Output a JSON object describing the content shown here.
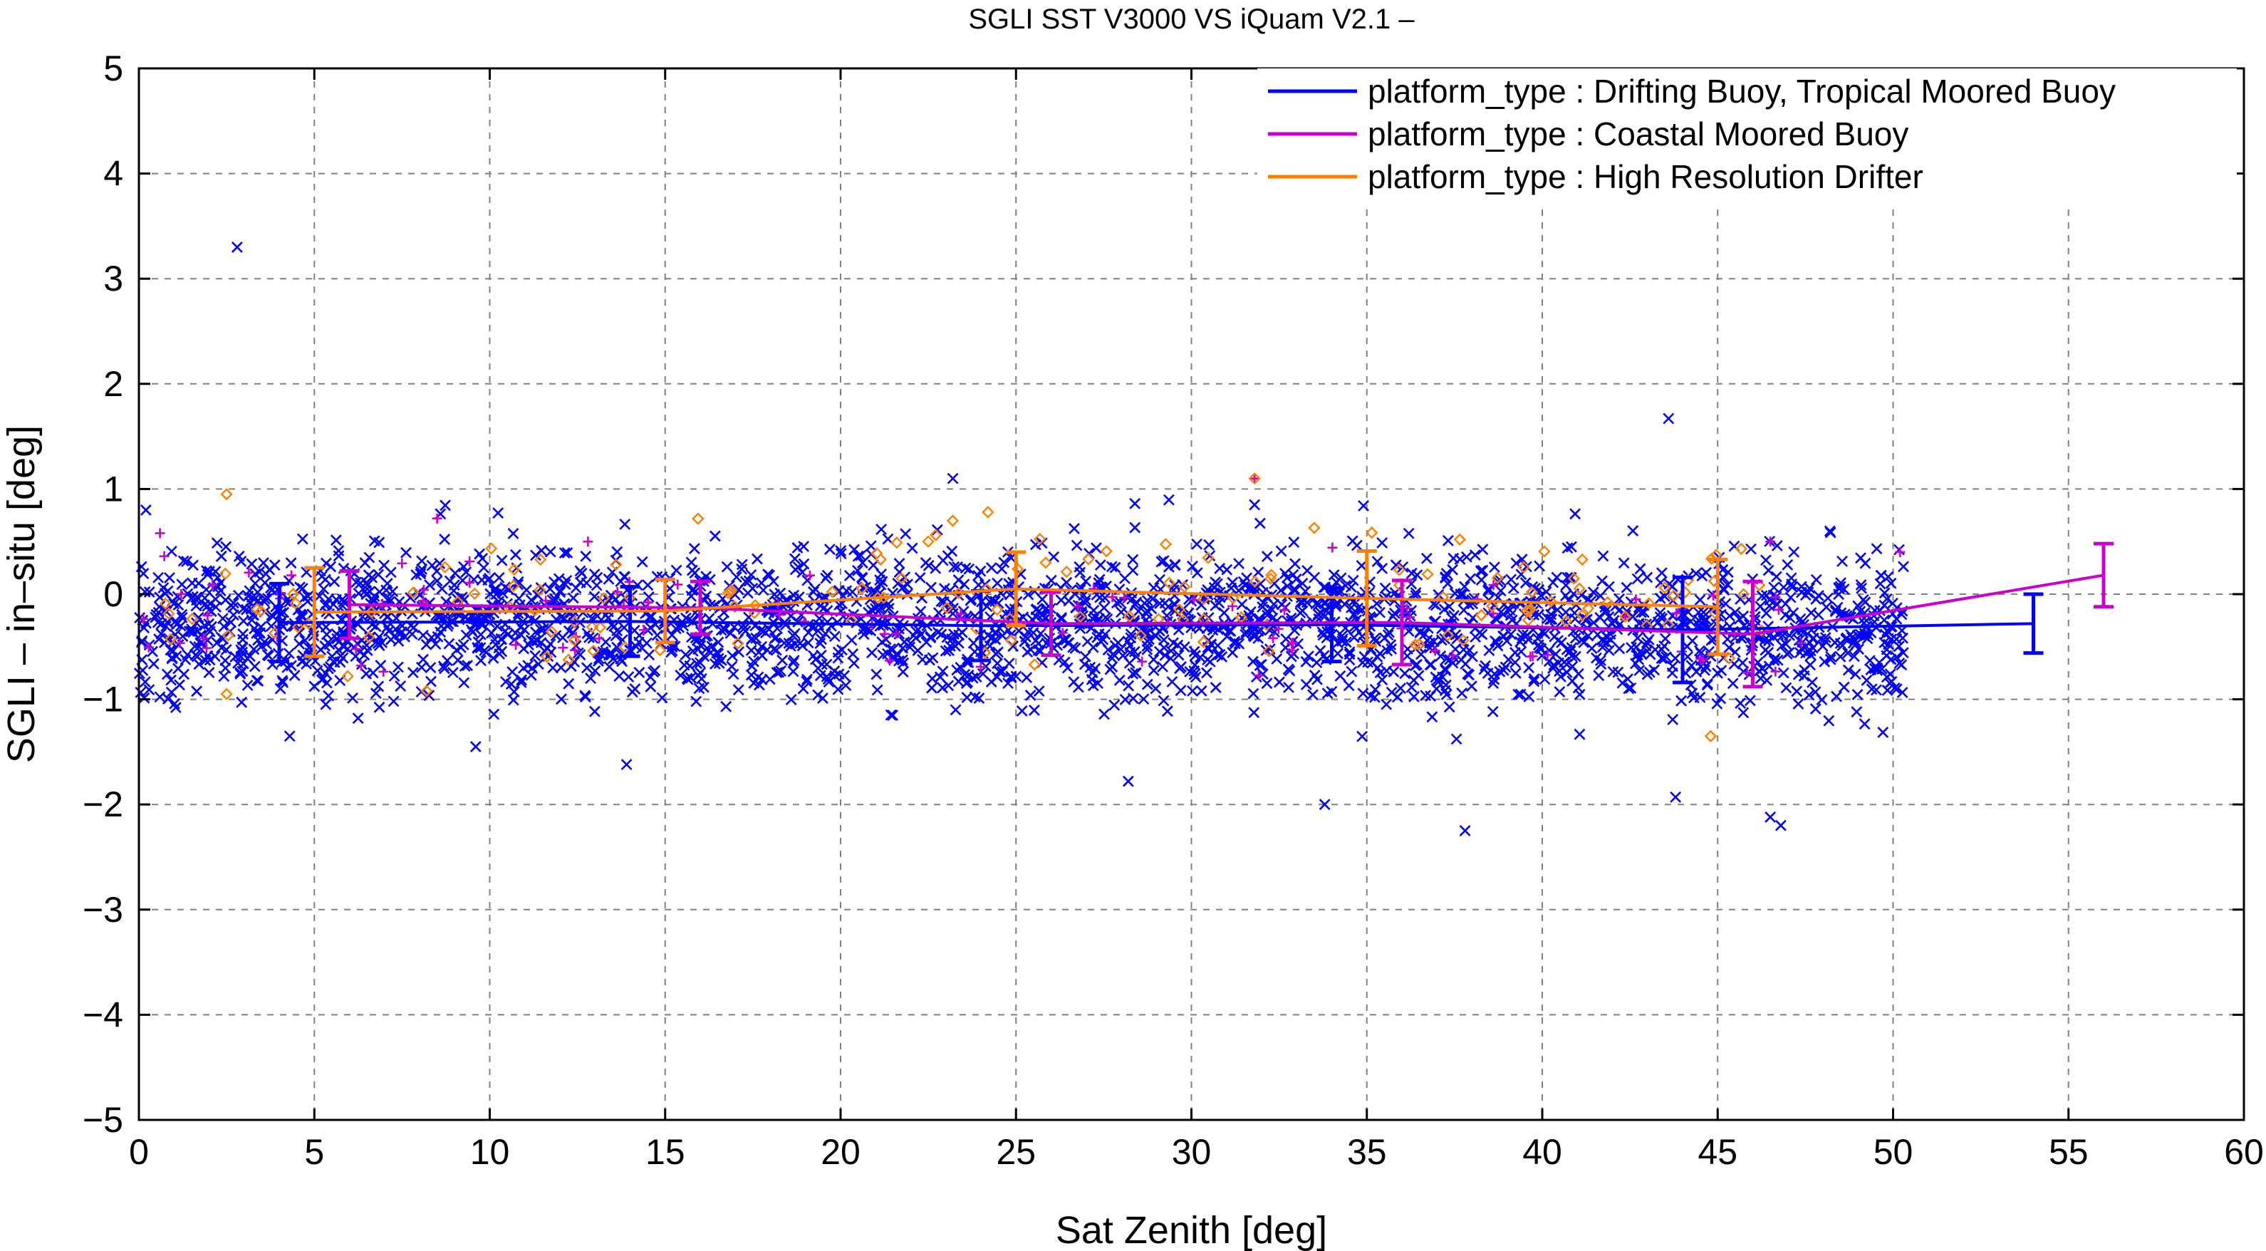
{
  "chart_data": {
    "type": "scatter",
    "title": "SGLI SST V3000 VS iQuam V2.1  –",
    "xlabel": "Sat Zenith [deg]",
    "ylabel": "SGLI – in–situ [deg]",
    "xlim": [
      0,
      60
    ],
    "ylim": [
      -5,
      5
    ],
    "xticks": [
      "0",
      "5",
      "10",
      "15",
      "20",
      "25",
      "30",
      "35",
      "40",
      "45",
      "50",
      "55",
      "60"
    ],
    "yticks": [
      "−5",
      "−4",
      "−3",
      "−2",
      "−1",
      "0",
      "1",
      "2",
      "3",
      "4",
      "5"
    ],
    "grid": true,
    "legend_position": "top-right",
    "series": [
      {
        "name": "platform_type : Drifting Buoy, Tropical Moored Buoy",
        "color": "#0000ff",
        "marker": "x",
        "bin_x": [
          4,
          14,
          24,
          34,
          44,
          54
        ],
        "bin_mean": [
          -0.27,
          -0.26,
          -0.3,
          -0.29,
          -0.34,
          -0.28
        ],
        "bin_std": [
          0.37,
          0.33,
          0.33,
          0.35,
          0.5,
          0.28
        ],
        "points": [
          [
            2.8,
            3.3
          ],
          [
            43.6,
            1.67
          ],
          [
            0.2,
            0.8
          ],
          [
            23.2,
            1.1
          ],
          [
            31.8,
            0.85
          ],
          [
            37.8,
            -2.25
          ],
          [
            33.8,
            -2.0
          ],
          [
            28.2,
            -1.78
          ],
          [
            46.8,
            -2.2
          ],
          [
            46.5,
            -2.12
          ],
          [
            43.8,
            -1.93
          ],
          [
            13.9,
            -1.62
          ],
          [
            9.6,
            -1.45
          ],
          [
            48.2,
            0.6
          ]
        ]
      },
      {
        "name": "platform_type : Coastal Moored Buoy",
        "color": "#cc00cc",
        "marker": "+",
        "bin_x": [
          6,
          16,
          26,
          36,
          46,
          56
        ],
        "bin_mean": [
          -0.1,
          -0.13,
          -0.28,
          -0.27,
          -0.38,
          0.18
        ],
        "bin_std": [
          0.32,
          0.25,
          0.3,
          0.4,
          0.5,
          0.3
        ],
        "points": [
          [
            0.6,
            0.58
          ],
          [
            8.5,
            0.72
          ],
          [
            12.8,
            0.5
          ],
          [
            31.8,
            1.1
          ],
          [
            46.5,
            0.5
          ],
          [
            50.2,
            0.4
          ]
        ]
      },
      {
        "name": "platform_type : High Resolution Drifter",
        "color": "#ff8000",
        "marker": "diamond",
        "bin_x": [
          5,
          15,
          25,
          35,
          45
        ],
        "bin_mean": [
          -0.17,
          -0.16,
          0.05,
          -0.04,
          -0.12
        ],
        "bin_std": [
          0.42,
          0.3,
          0.35,
          0.45,
          0.45
        ],
        "points": [
          [
            2.5,
            0.95
          ],
          [
            24.2,
            0.78
          ],
          [
            31.8,
            1.1
          ],
          [
            44.8,
            -1.35
          ],
          [
            8.2,
            -0.92
          ],
          [
            2.5,
            -0.95
          ],
          [
            33.5,
            0.63
          ]
        ]
      }
    ]
  }
}
